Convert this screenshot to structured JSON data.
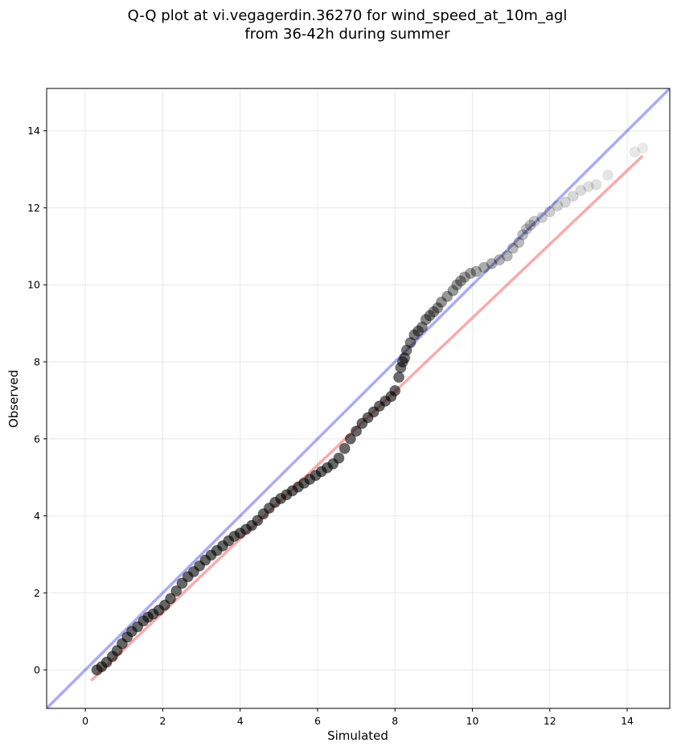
{
  "chart_data": {
    "type": "scatter",
    "title": [
      "Q-Q plot at vi.vegagerdin.36270 for wind_speed_at_10m_agl",
      "from 36-42h during summer"
    ],
    "xlabel": "Simulated",
    "ylabel": "Observed",
    "xlim": [
      -1.0,
      15.1
    ],
    "ylim": [
      -1.0,
      15.1
    ],
    "xticks": [
      0,
      2,
      4,
      6,
      8,
      10,
      12,
      14
    ],
    "yticks": [
      0,
      2,
      4,
      6,
      8,
      10,
      12,
      14
    ],
    "grid": true,
    "colors": {
      "points": "#000000",
      "identity_line": "#0000dd",
      "fit_line": "#ee0000"
    },
    "reference_lines": [
      {
        "kind": "identity",
        "x": [
          -1.0,
          15.1
        ],
        "y": [
          -1.0,
          15.1
        ]
      },
      {
        "kind": "fit",
        "x": [
          0.15,
          14.4
        ],
        "y": [
          -0.28,
          13.35
        ]
      }
    ],
    "series": [
      {
        "x": [
          0.3,
          0.42,
          0.55,
          0.7,
          0.82,
          0.95,
          1.08,
          1.2,
          1.35,
          1.5,
          1.62,
          1.75,
          1.9,
          2.05,
          2.2,
          2.35,
          2.5,
          2.65,
          2.8,
          2.95,
          3.1,
          3.25,
          3.4,
          3.55,
          3.7,
          3.85,
          4.0,
          4.15,
          4.3,
          4.45,
          4.6,
          4.75,
          4.9,
          5.05,
          5.2,
          5.35,
          5.5,
          5.65,
          5.8,
          5.95,
          6.1,
          6.25,
          6.4,
          6.55,
          6.7,
          6.85,
          7.0,
          7.15,
          7.3,
          7.45,
          7.6,
          7.75,
          7.9,
          8.0,
          8.1,
          8.15,
          8.2,
          8.25,
          8.3,
          8.4,
          8.5,
          8.6,
          8.7,
          8.8,
          8.9,
          9.0,
          9.1,
          9.2,
          9.35,
          9.5,
          9.6,
          9.7,
          9.8,
          9.95,
          10.1,
          10.3,
          10.5,
          10.7,
          10.9,
          11.05,
          11.2,
          11.3,
          11.4,
          11.5,
          11.6,
          11.8,
          12.0,
          12.2,
          12.4,
          12.6,
          12.8,
          13.0,
          13.2,
          13.5,
          14.2,
          14.4
        ],
        "y": [
          0.0,
          0.08,
          0.2,
          0.35,
          0.5,
          0.68,
          0.85,
          1.0,
          1.12,
          1.27,
          1.37,
          1.45,
          1.55,
          1.68,
          1.85,
          2.05,
          2.25,
          2.42,
          2.55,
          2.7,
          2.85,
          2.98,
          3.1,
          3.22,
          3.35,
          3.47,
          3.55,
          3.65,
          3.75,
          3.88,
          4.05,
          4.2,
          4.35,
          4.45,
          4.55,
          4.65,
          4.75,
          4.85,
          4.95,
          5.05,
          5.15,
          5.25,
          5.35,
          5.5,
          5.75,
          6.0,
          6.2,
          6.4,
          6.55,
          6.7,
          6.85,
          6.98,
          7.1,
          7.25,
          7.6,
          7.85,
          8.0,
          8.1,
          8.3,
          8.5,
          8.7,
          8.8,
          8.9,
          9.1,
          9.2,
          9.3,
          9.4,
          9.55,
          9.7,
          9.85,
          10.0,
          10.1,
          10.2,
          10.3,
          10.35,
          10.45,
          10.55,
          10.65,
          10.75,
          10.95,
          11.1,
          11.3,
          11.45,
          11.55,
          11.65,
          11.75,
          11.9,
          12.05,
          12.15,
          12.3,
          12.45,
          12.55,
          12.6,
          12.85,
          13.45,
          13.55
        ],
        "alpha_min": 0.08,
        "alpha_max": 0.6
      }
    ]
  }
}
